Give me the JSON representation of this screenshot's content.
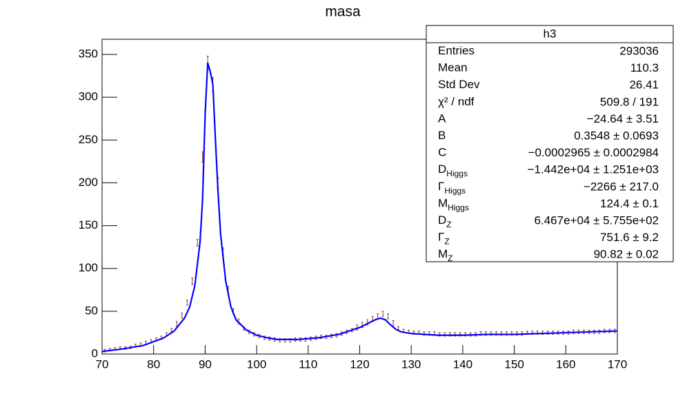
{
  "chart_data": {
    "type": "histogram",
    "title": "masa",
    "bins": [
      70,
      71,
      72,
      73,
      74,
      75,
      76,
      77,
      78,
      79,
      80,
      81,
      82,
      83,
      84,
      85,
      86,
      87,
      88,
      89,
      90,
      91,
      92,
      93,
      94,
      95,
      96,
      97,
      98,
      99,
      100,
      101,
      102,
      103,
      104,
      105,
      106,
      107,
      108,
      109,
      110,
      111,
      112,
      113,
      114,
      115,
      116,
      117,
      118,
      119,
      120,
      121,
      122,
      123,
      124,
      125,
      126,
      127,
      128,
      129,
      130,
      131,
      132,
      133,
      134,
      135,
      136,
      137,
      138,
      139,
      140,
      141,
      142,
      143,
      144,
      145,
      146,
      147,
      148,
      149,
      150,
      151,
      152,
      153,
      154,
      155,
      156,
      157,
      158,
      159,
      160,
      161,
      162,
      163,
      164,
      165,
      166,
      167,
      168,
      169,
      170
    ],
    "counts": [
      4,
      5,
      6,
      7,
      7,
      8,
      10,
      11,
      13,
      15,
      17,
      19,
      23,
      28,
      35,
      45,
      60,
      85,
      130,
      230,
      340,
      315,
      200,
      120,
      75,
      50,
      38,
      30,
      26,
      23,
      21,
      19,
      18,
      17,
      16,
      16,
      16,
      17,
      17,
      17,
      18,
      19,
      20,
      20,
      21,
      22,
      24,
      26,
      28,
      31,
      34,
      37,
      41,
      44,
      47,
      44,
      36,
      30,
      27,
      26,
      25,
      25,
      24,
      24,
      24,
      23,
      23,
      23,
      23,
      23,
      23,
      23,
      23,
      24,
      24,
      24,
      24,
      24,
      24,
      24,
      24,
      24,
      25,
      25,
      25,
      25,
      25,
      25,
      25,
      25,
      25,
      26,
      26,
      26,
      26,
      26,
      26,
      27,
      27,
      27
    ],
    "errors": [
      1.5,
      1.5,
      1.5,
      1.5,
      1.5,
      1.5,
      1.5,
      2,
      2,
      2,
      2,
      2,
      2,
      2,
      3,
      3,
      3,
      4,
      4,
      6,
      8,
      8,
      6,
      4,
      4,
      3,
      3,
      2,
      2,
      2,
      2,
      2,
      2,
      2,
      2,
      2,
      2,
      2,
      2,
      2,
      2,
      2,
      2,
      2,
      2,
      2,
      2,
      2,
      2,
      3,
      3,
      3,
      3,
      3,
      3,
      3,
      3,
      2,
      2,
      2,
      2,
      2,
      2,
      2,
      2,
      2,
      2,
      2,
      2,
      2,
      2,
      2,
      2,
      2,
      2,
      2,
      2,
      2,
      2,
      2,
      2,
      2,
      2,
      2,
      2,
      2,
      2,
      2,
      2,
      2,
      2,
      2,
      2,
      2,
      2,
      2,
      2,
      2,
      2,
      2
    ],
    "color": "#993333",
    "xlim": [
      70,
      170
    ],
    "ylim": [
      0,
      367.7
    ],
    "xticks": [
      70,
      80,
      90,
      100,
      110,
      120,
      130,
      140,
      150,
      160,
      170
    ],
    "yticks": [
      0,
      50,
      100,
      150,
      200,
      250,
      300,
      350
    ],
    "fit": {
      "type": "line",
      "color": "#0000ff",
      "x": [
        70,
        74,
        78,
        82,
        84,
        86,
        87,
        88,
        89,
        89.5,
        90,
        90.5,
        91,
        91.5,
        92,
        92.5,
        93,
        94,
        95,
        96,
        98,
        100,
        102,
        104,
        106,
        108,
        110,
        112,
        114,
        116,
        118,
        120,
        122,
        123,
        124,
        125,
        126,
        127,
        128,
        130,
        135,
        140,
        145,
        150,
        155,
        160,
        165,
        170
      ],
      "values": [
        3,
        6,
        10,
        19,
        27,
        42,
        55,
        80,
        130,
        180,
        280,
        340,
        330,
        315,
        250,
        190,
        140,
        85,
        55,
        40,
        28,
        22,
        19,
        17,
        17,
        17,
        18,
        19,
        21,
        23,
        27,
        31,
        37,
        40,
        42,
        40,
        34,
        29,
        26,
        24,
        22,
        22,
        23,
        23,
        24,
        25,
        26,
        27
      ]
    },
    "stats": {
      "title": "h3",
      "rows": [
        {
          "label": "Entries",
          "value": 293036
        },
        {
          "label": "Mean",
          "value": 110.3
        },
        {
          "label": "Std Dev",
          "value": 26.41
        },
        {
          "label": "χ² / ndf",
          "value": "509.8 / 191"
        },
        {
          "label": "A",
          "value": "−24.64 ± 3.51"
        },
        {
          "label": "B",
          "value": "0.3548 ± 0.0693"
        },
        {
          "label": "C",
          "value": "−0.0002965 ± 0.0002984"
        },
        {
          "label": "D",
          "sub": "Higgs",
          "value": "−1.442e+04 ± 1.251e+03"
        },
        {
          "label": "Γ",
          "sub": "Higgs",
          "value": "−2266 ± 217.0"
        },
        {
          "label": "M",
          "sub": "Higgs",
          "value": "124.4 ± 0.1"
        },
        {
          "label": "D",
          "sub": "Z",
          "value": "6.467e+04 ± 5.755e+02"
        },
        {
          "label": "Γ",
          "sub": "Z",
          "value": "751.6 ± 9.2"
        },
        {
          "label": "M",
          "sub": "Z",
          "value": "90.82 ± 0.02"
        }
      ]
    }
  }
}
